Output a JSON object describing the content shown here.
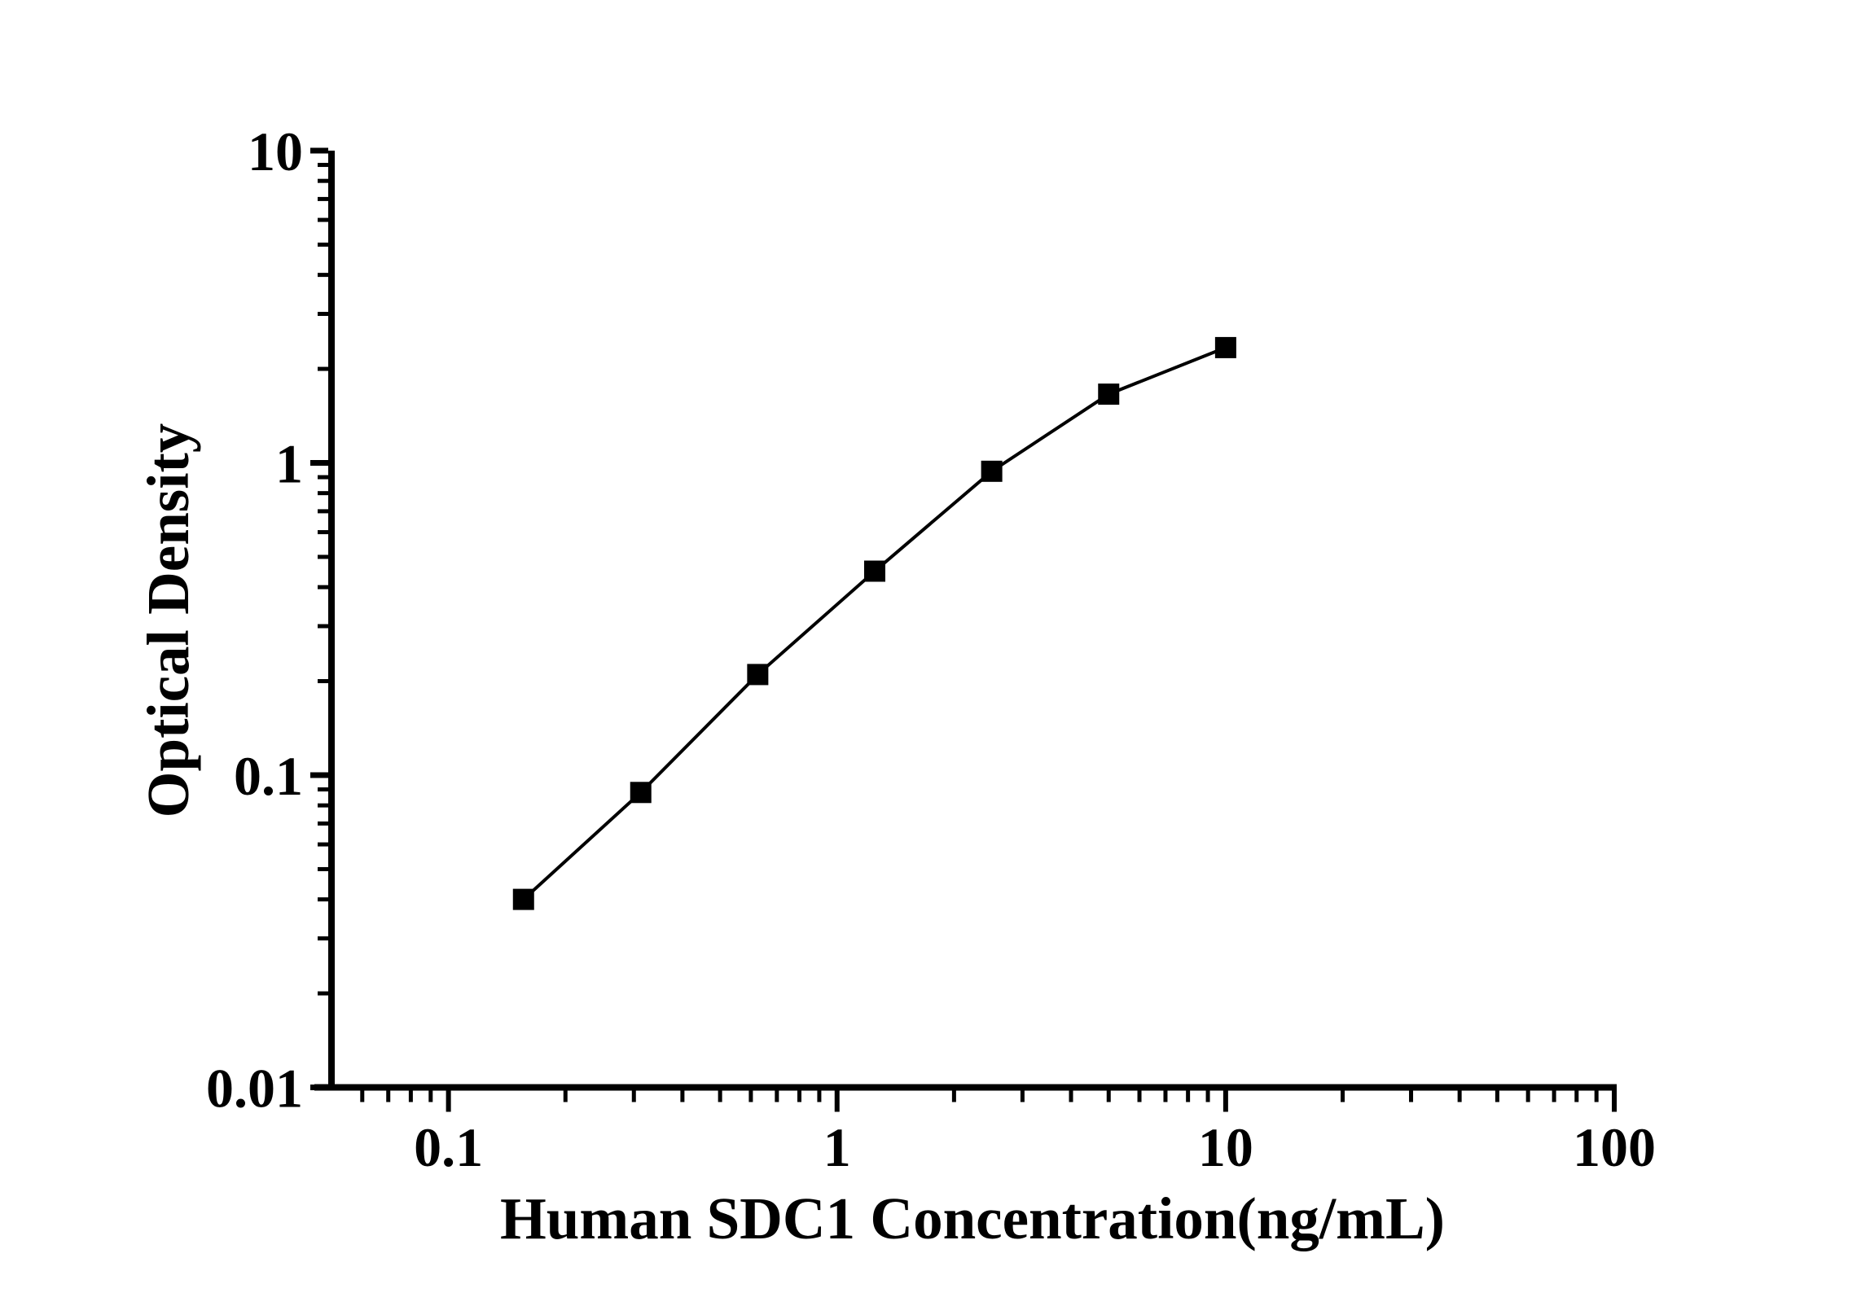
{
  "chart_data": {
    "type": "scatter-line",
    "title": "",
    "xlabel": "Human SDC1 Concentration(ng/mL)",
    "ylabel": "Optical Density",
    "x_scale": "log",
    "y_scale": "log",
    "xlim": [
      0.05,
      100
    ],
    "ylim": [
      0.01,
      10
    ],
    "grid": "off",
    "legend": "none",
    "x_ticks": [
      {
        "value": 0.1,
        "label": "0.1"
      },
      {
        "value": 1,
        "label": "1"
      },
      {
        "value": 10,
        "label": "10"
      },
      {
        "value": 100,
        "label": "100"
      }
    ],
    "y_ticks": [
      {
        "value": 0.01,
        "label": "0.01"
      },
      {
        "value": 0.1,
        "label": "0.1"
      },
      {
        "value": 1,
        "label": "1"
      },
      {
        "value": 10,
        "label": "10"
      }
    ],
    "series": [
      {
        "name": "standard-curve",
        "marker": "filled-square",
        "x": [
          0.156,
          0.3125,
          0.625,
          1.25,
          2.5,
          5,
          10
        ],
        "y": [
          0.04,
          0.088,
          0.21,
          0.45,
          0.94,
          1.66,
          2.34
        ]
      }
    ],
    "colors": {
      "background": "#ffffff",
      "axis": "#000000",
      "line": "#000000",
      "marker": "#000000",
      "text": "#000000"
    }
  }
}
